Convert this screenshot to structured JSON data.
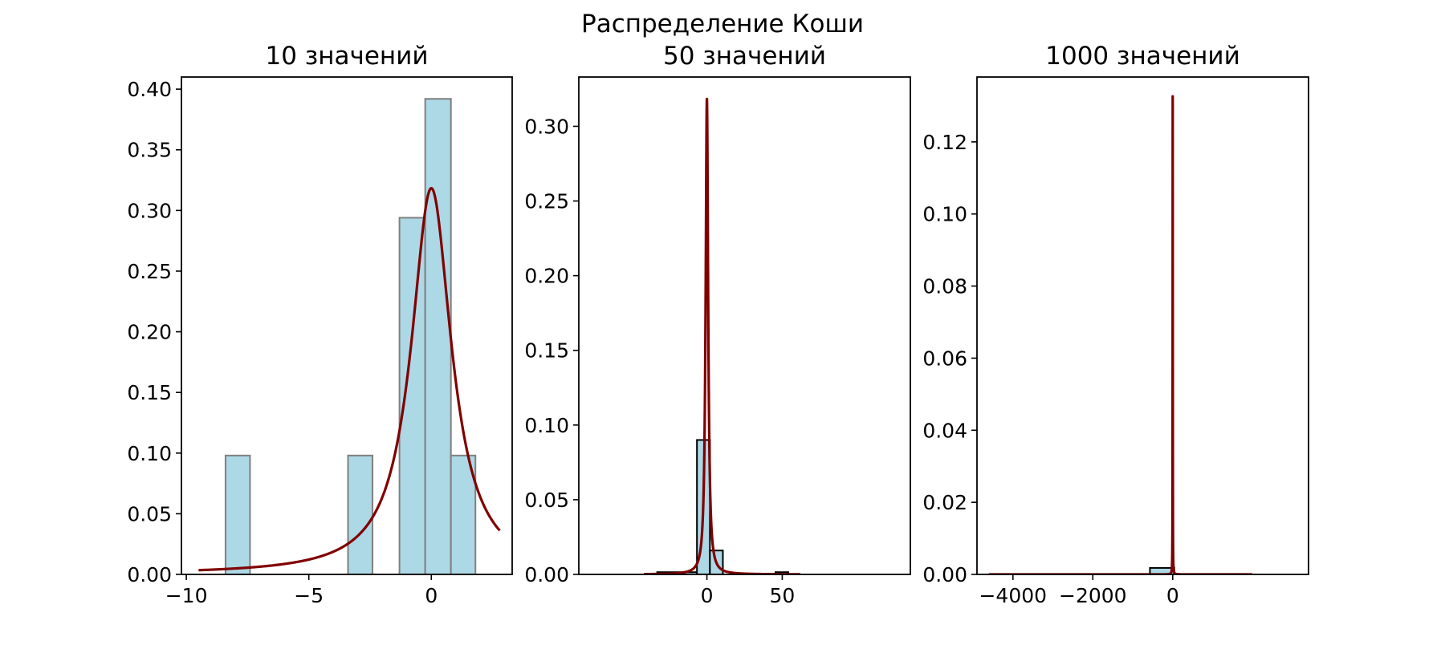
{
  "figure": {
    "suptitle": "Распределение Коши"
  },
  "colors": {
    "bar_fill": "#add8e6",
    "curve": "#800000",
    "bar_edge_panel1": "#808080",
    "bar_edge_panel2": "#000000",
    "bar_edge_panel3": "#000000"
  },
  "chart_data": [
    {
      "type": "bar",
      "title": "10 значений",
      "xlim": [
        -10.2,
        3.3
      ],
      "ylim": [
        0,
        0.41
      ],
      "xticks": [
        -10,
        -5,
        0
      ],
      "xtick_labels": [
        "−10",
        "−5",
        "0"
      ],
      "yticks": [
        0,
        0.05,
        0.1,
        0.15,
        0.2,
        0.25,
        0.3,
        0.35,
        0.4
      ],
      "ytick_labels": [
        "0.00",
        "0.05",
        "0.10",
        "0.15",
        "0.20",
        "0.25",
        "0.30",
        "0.35",
        "0.40"
      ],
      "bins": [
        {
          "x0": -8.4,
          "x1": -7.4,
          "height": 0.098
        },
        {
          "x0": -3.4,
          "x1": -2.4,
          "height": 0.098
        },
        {
          "x0": -1.3,
          "x1": -0.25,
          "height": 0.294
        },
        {
          "x0": -0.25,
          "x1": 0.8,
          "height": 0.392
        },
        {
          "x0": 0.8,
          "x1": 1.8,
          "height": 0.098
        }
      ],
      "curve": {
        "dist": "cauchy",
        "loc": 0,
        "scale": 1,
        "x_range": [
          -9.5,
          2.8
        ]
      }
    },
    {
      "type": "bar",
      "title": "50 значений",
      "xlim": [
        -85,
        135
      ],
      "ylim": [
        0,
        0.333
      ],
      "xticks": [
        0,
        50
      ],
      "xtick_labels": [
        "0",
        "50"
      ],
      "yticks": [
        0,
        0.05,
        0.1,
        0.15,
        0.2,
        0.25,
        0.3
      ],
      "ytick_labels": [
        "0.00",
        "0.05",
        "0.10",
        "0.15",
        "0.20",
        "0.25",
        "0.30"
      ],
      "bins": [
        {
          "x0": -33,
          "x1": -6.6,
          "height": 0.0015
        },
        {
          "x0": -6.6,
          "x1": 2,
          "height": 0.09
        },
        {
          "x0": 2,
          "x1": 10.6,
          "height": 0.016
        },
        {
          "x0": 45.5,
          "x1": 54,
          "height": 0.0015
        }
      ],
      "curve": {
        "dist": "cauchy",
        "loc": 0,
        "scale": 1,
        "x_range": [
          -42,
          62
        ]
      }
    },
    {
      "type": "bar",
      "title": "1000 значений",
      "xlim": [
        -4900,
        3400
      ],
      "ylim": [
        0,
        0.138
      ],
      "xticks": [
        -4000,
        -2000,
        0
      ],
      "xtick_labels": [
        "−4000",
        "−2000",
        "0"
      ],
      "yticks": [
        0,
        0.02,
        0.04,
        0.06,
        0.08,
        0.1,
        0.12
      ],
      "ytick_labels": [
        "0.00",
        "0.02",
        "0.04",
        "0.06",
        "0.08",
        "0.10",
        "0.12"
      ],
      "bins": [
        {
          "x0": -4600,
          "x1": -570,
          "height": 2e-05
        },
        {
          "x0": -570,
          "x1": 40,
          "height": 0.0018
        }
      ],
      "curve": {
        "dist": "cauchy",
        "loc": 0,
        "scale": 2.4,
        "x_range": [
          -4600,
          2000
        ]
      }
    }
  ]
}
